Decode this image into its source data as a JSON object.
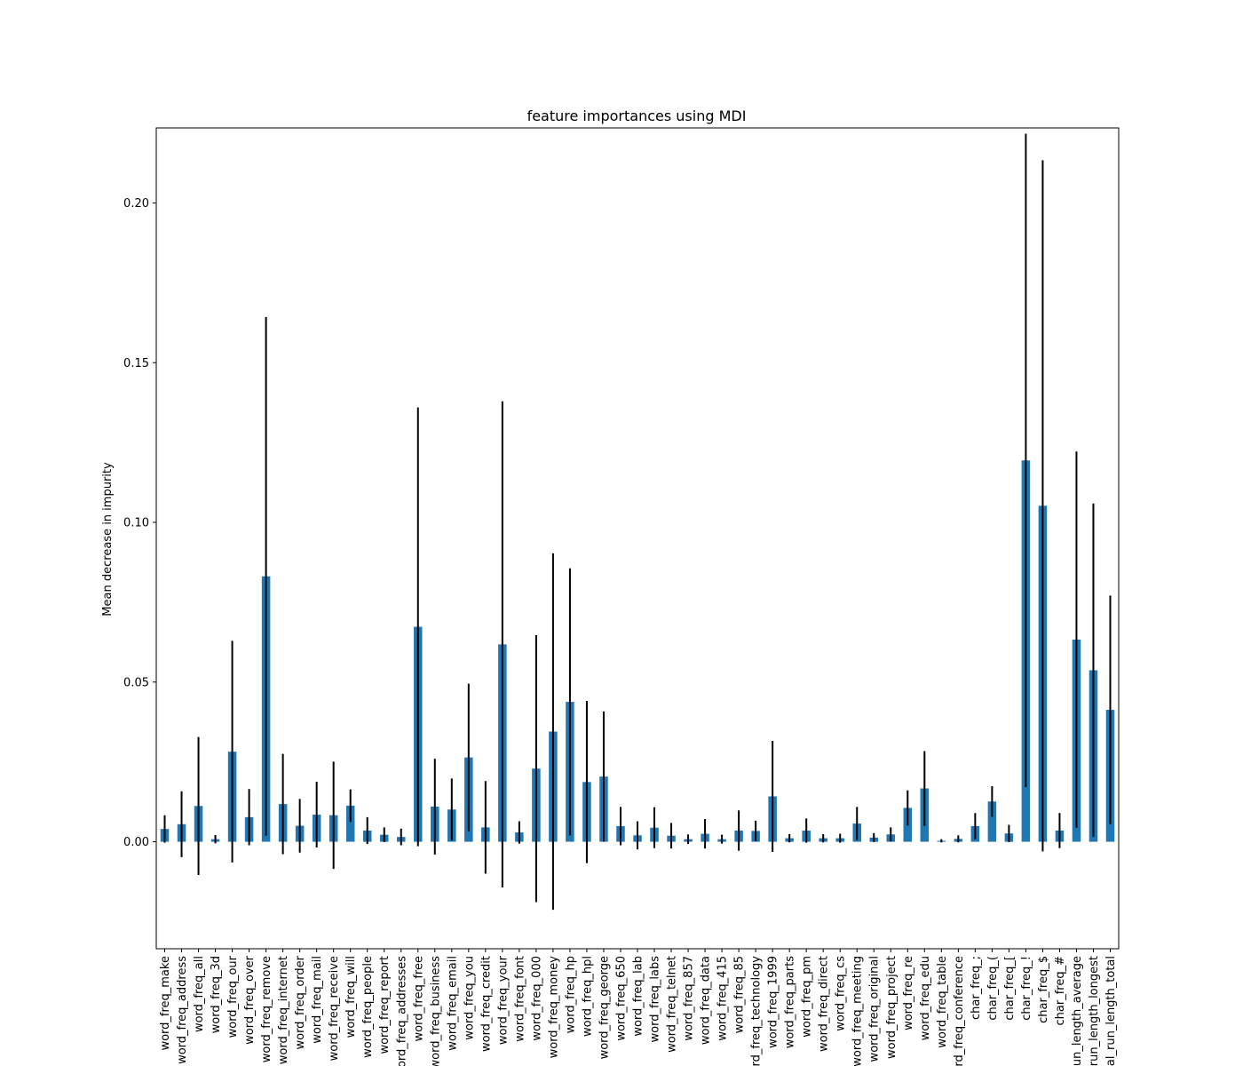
{
  "chart_data": {
    "type": "bar",
    "title": "feature importances using MDI",
    "xlabel": "",
    "ylabel": "Mean decrease in impurity",
    "ylim": [
      -0.0335,
      0.2235
    ],
    "yticks": [
      0.0,
      0.05,
      0.1,
      0.15,
      0.2
    ],
    "ytick_labels": [
      "0.00",
      "0.05",
      "0.10",
      "0.15",
      "0.20"
    ],
    "grid": false,
    "bar_color": "#1f77b4",
    "error_bar_color": "#000000",
    "categories": [
      "word_freq_make",
      "word_freq_address",
      "word_freq_all",
      "word_freq_3d",
      "word_freq_our",
      "word_freq_over",
      "word_freq_remove",
      "word_freq_internet",
      "word_freq_order",
      "word_freq_mail",
      "word_freq_receive",
      "word_freq_will",
      "word_freq_people",
      "word_freq_report",
      "word_freq_addresses",
      "word_freq_free",
      "word_freq_business",
      "word_freq_email",
      "word_freq_you",
      "word_freq_credit",
      "word_freq_your",
      "word_freq_font",
      "word_freq_000",
      "word_freq_money",
      "word_freq_hp",
      "word_freq_hpl",
      "word_freq_george",
      "word_freq_650",
      "word_freq_lab",
      "word_freq_labs",
      "word_freq_telnet",
      "word_freq_857",
      "word_freq_data",
      "word_freq_415",
      "word_freq_85",
      "word_freq_technology",
      "word_freq_1999",
      "word_freq_parts",
      "word_freq_pm",
      "word_freq_direct",
      "word_freq_cs",
      "word_freq_meeting",
      "word_freq_original",
      "word_freq_project",
      "word_freq_re",
      "word_freq_edu",
      "word_freq_table",
      "word_freq_conference",
      "char_freq_;",
      "char_freq_(",
      "char_freq_[",
      "char_freq_!",
      "char_freq_$",
      "char_freq_#",
      "capital_run_length_average",
      "capital_run_length_longest",
      "capital_run_length_total"
    ],
    "values": [
      0.004,
      0.0055,
      0.0112,
      0.0008,
      0.0282,
      0.0077,
      0.0831,
      0.0118,
      0.005,
      0.0085,
      0.0083,
      0.0113,
      0.0035,
      0.0022,
      0.0015,
      0.0673,
      0.011,
      0.0101,
      0.0264,
      0.0045,
      0.0618,
      0.0029,
      0.0229,
      0.0345,
      0.0438,
      0.0187,
      0.0204,
      0.0049,
      0.002,
      0.0044,
      0.0019,
      0.0008,
      0.0025,
      0.0008,
      0.0035,
      0.0034,
      0.0142,
      0.0011,
      0.0035,
      0.0011,
      0.0011,
      0.0057,
      0.0013,
      0.0023,
      0.0106,
      0.0167,
      0.0003,
      0.0009,
      0.0049,
      0.0126,
      0.0026,
      0.1194,
      0.1052,
      0.0035,
      0.0633,
      0.0537,
      0.0413
    ],
    "errors": [
      0.0043,
      0.0103,
      0.0216,
      0.0013,
      0.0347,
      0.0088,
      0.0812,
      0.0157,
      0.0084,
      0.0103,
      0.0168,
      0.0051,
      0.0042,
      0.0023,
      0.0026,
      0.0687,
      0.015,
      0.0097,
      0.0231,
      0.0145,
      0.0761,
      0.0035,
      0.0418,
      0.0558,
      0.0418,
      0.0254,
      0.0204,
      0.006,
      0.0044,
      0.0064,
      0.004,
      0.0015,
      0.0046,
      0.0014,
      0.0063,
      0.0032,
      0.0174,
      0.0013,
      0.0038,
      0.0013,
      0.0014,
      0.0052,
      0.0014,
      0.0022,
      0.0055,
      0.0117,
      0.0005,
      0.0011,
      0.0041,
      0.0048,
      0.0027,
      0.1023,
      0.1082,
      0.0055,
      0.0589,
      0.0522,
      0.0358
    ]
  }
}
